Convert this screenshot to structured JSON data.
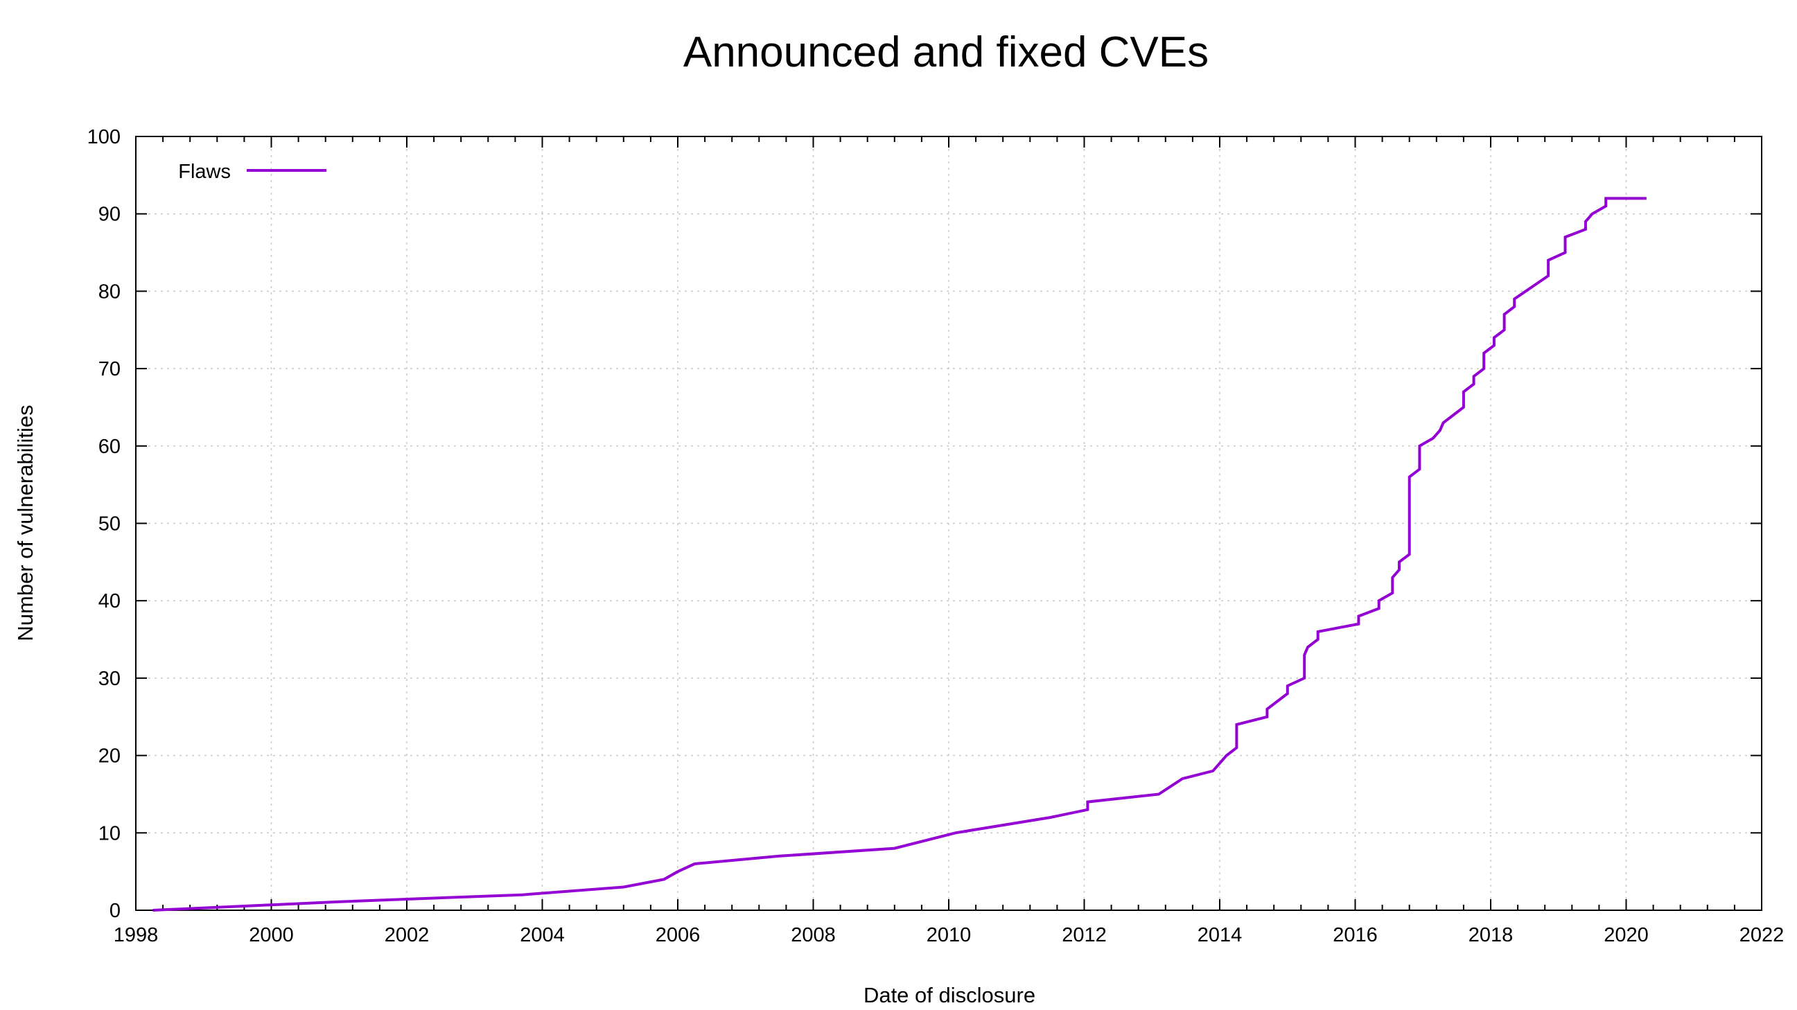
{
  "chart_data": {
    "type": "line",
    "title": "Announced and fixed CVEs",
    "xlabel": "Date of disclosure",
    "ylabel": "Number of vulnerabilities",
    "xlim": [
      1998,
      2022
    ],
    "ylim": [
      0,
      100
    ],
    "x_ticks": [
      "1998",
      "2000",
      "2002",
      "2004",
      "2006",
      "2008",
      "2010",
      "2012",
      "2014",
      "2016",
      "2018",
      "2020",
      "2022"
    ],
    "y_ticks": [
      "0",
      "10",
      "20",
      "30",
      "40",
      "50",
      "60",
      "70",
      "80",
      "90",
      "100"
    ],
    "grid": true,
    "legend_position": "top-left",
    "series": [
      {
        "name": "Flaws",
        "color": "#9400d3",
        "points": [
          [
            1998.25,
            0
          ],
          [
            2000.0,
            0.7
          ],
          [
            2001.0,
            1.1
          ],
          [
            2003.7,
            2
          ],
          [
            2005.2,
            3
          ],
          [
            2005.8,
            4
          ],
          [
            2006.0,
            5
          ],
          [
            2006.25,
            6
          ],
          [
            2007.5,
            7
          ],
          [
            2009.2,
            8
          ],
          [
            2010.1,
            10
          ],
          [
            2011.5,
            12
          ],
          [
            2012.05,
            13
          ],
          [
            2012.05,
            14
          ],
          [
            2013.1,
            15
          ],
          [
            2013.45,
            17
          ],
          [
            2013.9,
            18
          ],
          [
            2014.0,
            19
          ],
          [
            2014.1,
            20
          ],
          [
            2014.25,
            21
          ],
          [
            2014.25,
            24
          ],
          [
            2014.7,
            25
          ],
          [
            2014.7,
            26
          ],
          [
            2015.0,
            28
          ],
          [
            2015.0,
            29
          ],
          [
            2015.25,
            30
          ],
          [
            2015.25,
            33
          ],
          [
            2015.3,
            34
          ],
          [
            2015.45,
            35
          ],
          [
            2015.45,
            36
          ],
          [
            2016.05,
            37
          ],
          [
            2016.05,
            38
          ],
          [
            2016.35,
            39
          ],
          [
            2016.35,
            40
          ],
          [
            2016.55,
            41
          ],
          [
            2016.55,
            43
          ],
          [
            2016.65,
            44
          ],
          [
            2016.65,
            45
          ],
          [
            2016.8,
            46
          ],
          [
            2016.8,
            56
          ],
          [
            2016.95,
            57
          ],
          [
            2016.95,
            60
          ],
          [
            2017.15,
            61
          ],
          [
            2017.25,
            62
          ],
          [
            2017.3,
            63
          ],
          [
            2017.6,
            65
          ],
          [
            2017.6,
            67
          ],
          [
            2017.75,
            68
          ],
          [
            2017.75,
            69
          ],
          [
            2017.9,
            70
          ],
          [
            2017.9,
            72
          ],
          [
            2018.05,
            73
          ],
          [
            2018.05,
            74
          ],
          [
            2018.2,
            75
          ],
          [
            2018.2,
            77
          ],
          [
            2018.35,
            78
          ],
          [
            2018.35,
            79
          ],
          [
            2018.85,
            82
          ],
          [
            2018.85,
            84
          ],
          [
            2019.1,
            85
          ],
          [
            2019.1,
            87
          ],
          [
            2019.4,
            88
          ],
          [
            2019.4,
            89
          ],
          [
            2019.5,
            90
          ],
          [
            2019.7,
            91
          ],
          [
            2019.7,
            92
          ],
          [
            2020.3,
            92
          ]
        ]
      }
    ]
  }
}
